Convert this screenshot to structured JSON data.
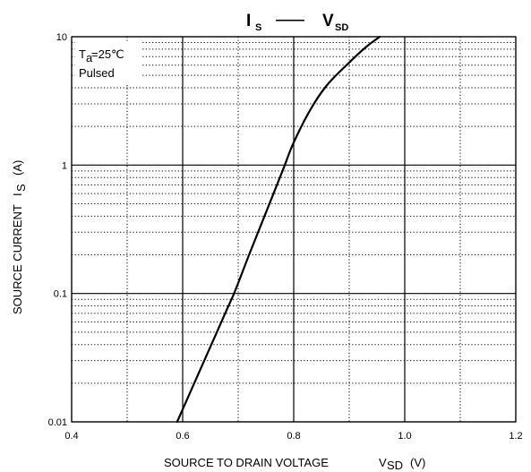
{
  "chart_data": {
    "type": "line",
    "title_main": "I",
    "title_main_sub": "S",
    "title_dash": "——",
    "title_second": "V",
    "title_second_sub": "SD",
    "annotation": {
      "line1_prefix": "T",
      "line1_sub": "a",
      "line1_suffix": "=25℃",
      "line2": "Pulsed"
    },
    "xlabel_main": "SOURCE TO DRAIN VOLTAGE",
    "xlabel_var": "V",
    "xlabel_sub": "SD",
    "xlabel_unit": "(V)",
    "ylabel_main": "SOURCE CURRENT",
    "ylabel_var": "I",
    "ylabel_sub": "S",
    "ylabel_unit": "(A)",
    "xlim": [
      0.4,
      1.2
    ],
    "ylim": [
      0.01,
      10
    ],
    "yscale": "log",
    "x_ticks": [
      "0.4",
      "0.6",
      "0.8",
      "1.0",
      "1.2"
    ],
    "y_ticks": [
      "0.01",
      "0.1",
      "1",
      "10"
    ],
    "x_major": [
      0.4,
      0.6,
      0.8,
      1.0,
      1.2
    ],
    "x_minor": [
      0.5,
      0.7,
      0.9,
      1.1
    ],
    "y_major": [
      0.01,
      0.1,
      1,
      10
    ],
    "grid": "on",
    "series": [
      {
        "x": [
          0.59,
          0.62,
          0.65,
          0.68,
          0.695,
          0.72,
          0.75,
          0.78,
          0.8,
          0.83,
          0.86,
          0.9,
          0.93,
          0.955
        ],
        "y": [
          0.01,
          0.0196,
          0.0385,
          0.0757,
          0.106,
          0.202,
          0.427,
          0.904,
          1.5,
          2.7,
          4.2,
          6.3,
          8.3,
          10
        ]
      }
    ]
  }
}
